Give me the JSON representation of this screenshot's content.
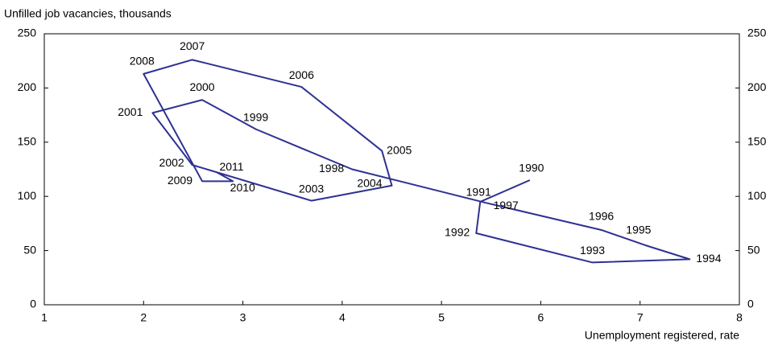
{
  "chart_data": {
    "type": "connected-scatter",
    "y_axis_label": "Unfilled job vacancies, thousands",
    "x_axis_label": "Unemployment registered, rate",
    "series": [
      {
        "color": "#2e3192",
        "point_labels": [
          "1990",
          "1991",
          "1992",
          "1993",
          "1994",
          "1995",
          "1996",
          "1997",
          "1998",
          "1999",
          "2000",
          "2001",
          "2002",
          "2003",
          "2004",
          "2005",
          "2006",
          "2007",
          "2008",
          "2009",
          "2010",
          "2011"
        ],
        "x": [
          5.89,
          5.39,
          5.35,
          6.52,
          7.5,
          7.05,
          6.61,
          5.45,
          4.1,
          3.13,
          2.59,
          2.09,
          2.49,
          3.69,
          4.5,
          4.4,
          3.59,
          2.49,
          2.0,
          2.59,
          2.9,
          2.74
        ],
        "values": [
          115,
          95,
          66,
          39,
          42,
          55,
          69,
          94,
          125,
          162,
          189,
          177,
          129,
          96,
          110,
          142,
          201,
          226,
          213,
          114,
          114,
          122
        ]
      }
    ],
    "xlim": [
      1,
      8
    ],
    "xticks": [
      1,
      2,
      3,
      4,
      5,
      6,
      7,
      8
    ],
    "ylim": [
      0,
      250
    ],
    "yticks": [
      0,
      50,
      100,
      150,
      200,
      250
    ],
    "y2lim": [
      0,
      250
    ],
    "y2ticks": [
      0,
      50,
      100,
      150,
      200,
      250
    ]
  }
}
